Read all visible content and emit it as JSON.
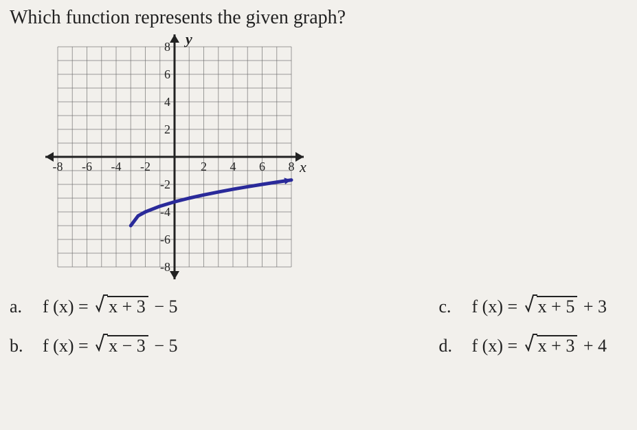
{
  "question": "Which function represents the given graph?",
  "graph": {
    "xlim": [
      -8,
      8
    ],
    "ylim": [
      -8,
      8
    ],
    "xtick_labels_neg": [
      "-8",
      "-6",
      "-4",
      "-2"
    ],
    "xtick_labels_pos": [
      "2",
      "4",
      "6",
      "8"
    ],
    "ytick_labels_pos": [
      "2",
      "4",
      "6",
      "8"
    ],
    "ytick_labels_neg": [
      "-2",
      "-4",
      "-6",
      "-8"
    ],
    "axis_label_x": "x",
    "axis_label_y": "y",
    "grid_step": 1,
    "grid_color": "#6b6b6b",
    "grid_width": 1,
    "axis_color": "#222222",
    "axis_width": 3,
    "curve_color": "#2a2a9a",
    "curve_width": 5,
    "curve_function": "f(x)=sqrt(x+3)-5",
    "curve_domain": [
      -3,
      8
    ],
    "background_color": "#f2f0ec",
    "tick_label_fontsize": 18,
    "axis_label_fontsize": 22,
    "curve_points": [
      [
        -3,
        -5
      ],
      [
        -2.5,
        -4.293
      ],
      [
        -2,
        -4
      ],
      [
        -1,
        -3.586
      ],
      [
        0,
        -3.268
      ],
      [
        1,
        -3
      ],
      [
        2,
        -2.764
      ],
      [
        3,
        -2.551
      ],
      [
        4,
        -2.354
      ],
      [
        5,
        -2.172
      ],
      [
        6,
        -2
      ],
      [
        7,
        -1.838
      ],
      [
        8,
        -1.683
      ]
    ]
  },
  "answers": {
    "a": {
      "letter": "a.",
      "prefix": "f (x) = ",
      "radicand": "x + 3",
      "suffix": " − 5"
    },
    "b": {
      "letter": "b.",
      "prefix": "f (x) = ",
      "radicand": "x − 3",
      "suffix": " − 5"
    },
    "c": {
      "letter": "c.",
      "prefix": "f (x) = ",
      "radicand": "x + 5",
      "suffix": " + 3"
    },
    "d": {
      "letter": "d.",
      "prefix": "f (x) = ",
      "radicand": "x + 3",
      "suffix": " + 4"
    }
  }
}
